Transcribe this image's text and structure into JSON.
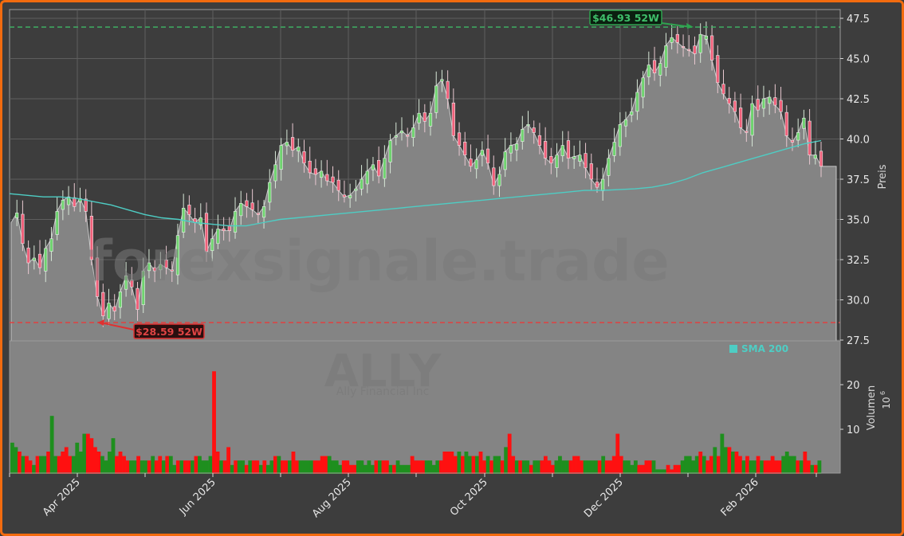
{
  "chart_data": {
    "type": "candlestick+area+bar",
    "ticker_watermark": "ALLY",
    "company_watermark": "Ally Financial Inc",
    "site_watermark": "forexsignale.trade",
    "price_axis": {
      "label": "Preis",
      "ticks": [
        27.5,
        30.0,
        32.5,
        35.0,
        37.5,
        40.0,
        42.5,
        45.0,
        47.5
      ],
      "ylim": [
        27.5,
        47.9
      ]
    },
    "volume_axis": {
      "label": "Volumen",
      "multiplier": "10^6",
      "ticks": [
        10,
        20
      ],
      "ylim": [
        0,
        30
      ]
    },
    "x_ticks": [
      "Apr 2025",
      "Jun 2025",
      "Aug 2025",
      "Oct 2025",
      "Dec 2025",
      "Feb 2026"
    ],
    "legend": [
      {
        "name": "SMA 200",
        "color": "#4ecdc4"
      }
    ],
    "annotations": [
      {
        "label": "$46.93 52W",
        "value": 46.93,
        "type": "52w_high",
        "color": "#2ea44f"
      },
      {
        "label": "$28.59 52W",
        "value": 28.59,
        "type": "52w_low",
        "color": "#e03131"
      }
    ],
    "last_close": 38.3,
    "close": [
      34.8,
      35.4,
      33.5,
      32.3,
      32.6,
      32.0,
      33.2,
      33.8,
      35.5,
      36.2,
      36.4,
      35.8,
      36.3,
      35.5,
      32.5,
      30.2,
      29.0,
      29.8,
      29.3,
      30.5,
      31.5,
      30.8,
      29.4,
      31.8,
      32.3,
      31.8,
      32.2,
      32.0,
      31.8,
      34.0,
      35.7,
      35.3,
      34.8,
      35.1,
      33.0,
      33.8,
      34.4,
      34.3,
      34.3,
      35.5,
      36.0,
      35.8,
      35.6,
      35.3,
      35.8,
      37.3,
      38.4,
      39.6,
      39.8,
      39.3,
      39.5,
      38.5,
      37.9,
      37.8,
      38.0,
      37.4,
      37.3,
      36.8,
      36.4,
      36.5,
      36.9,
      37.5,
      38.0,
      38.4,
      37.7,
      38.8,
      39.9,
      40.2,
      40.5,
      40.2,
      40.7,
      41.6,
      41.1,
      41.6,
      43.3,
      43.7,
      42.5,
      40.2,
      39.6,
      39.0,
      38.3,
      38.7,
      39.3,
      38.5,
      37.1,
      37.8,
      39.2,
      39.6,
      39.7,
      40.6,
      40.9,
      40.4,
      39.6,
      38.8,
      38.5,
      39.0,
      39.6,
      38.8,
      38.9,
      39.0,
      38.2,
      37.5,
      37.0,
      37.5,
      38.8,
      39.8,
      40.9,
      41.2,
      41.7,
      42.9,
      43.8,
      44.6,
      44.1,
      44.7,
      45.8,
      46.3,
      46.0,
      45.7,
      45.5,
      45.3,
      46.5,
      46.4,
      44.9,
      43.5,
      42.8,
      42.2,
      41.7,
      40.7,
      40.4,
      42.2,
      41.8,
      42.5,
      42.6,
      42.1,
      41.7,
      40.2,
      39.8,
      40.4,
      41.3,
      39.0,
      39.0,
      38.3
    ],
    "sma200": [
      36.6,
      36.5,
      36.4,
      36.4,
      36.3,
      36.1,
      35.9,
      35.6,
      35.3,
      35.1,
      35.0,
      34.8,
      34.7,
      34.6,
      34.6,
      34.8,
      35.0,
      35.1,
      35.2,
      35.3,
      35.4,
      35.5,
      35.6,
      35.7,
      35.8,
      35.9,
      36.0,
      36.1,
      36.2,
      36.3,
      36.4,
      36.5,
      36.6,
      36.7,
      36.8,
      36.8,
      36.85,
      36.9,
      37.0,
      37.2,
      37.5,
      37.9,
      38.2,
      38.5,
      38.8,
      39.1,
      39.4,
      39.7,
      39.9
    ],
    "volume": [
      7,
      6,
      5,
      4,
      4,
      3,
      2,
      4,
      4,
      4,
      5,
      13,
      4,
      4,
      5,
      6,
      4,
      4,
      7,
      5,
      9,
      9,
      8,
      6,
      5,
      4,
      3,
      5,
      8,
      4,
      5,
      4,
      3,
      3,
      3,
      4,
      3,
      3,
      3,
      4,
      3,
      4,
      3,
      4,
      4,
      2,
      3,
      3,
      3,
      3,
      3,
      4,
      4,
      3,
      3,
      4,
      23,
      5,
      3,
      3,
      6,
      2,
      3,
      3,
      3,
      2,
      3,
      3,
      3,
      2,
      3,
      2,
      3,
      4,
      4,
      3,
      3,
      3,
      5,
      3,
      3,
      3,
      3,
      3,
      3,
      3,
      4,
      4,
      4,
      3,
      3,
      2,
      3,
      3,
      2,
      2,
      3,
      3,
      2,
      3,
      2,
      3,
      3,
      3,
      3,
      2,
      2,
      3,
      2,
      2,
      2,
      4,
      3,
      3,
      3,
      3,
      3,
      2,
      3,
      3,
      5,
      5,
      5,
      4,
      5,
      4,
      5,
      4,
      4,
      4,
      5,
      3,
      4,
      3,
      4,
      4,
      3,
      6,
      9,
      4,
      3,
      3,
      3,
      3,
      2,
      3,
      3,
      3,
      4,
      3,
      2,
      3,
      4,
      3,
      3,
      3,
      4,
      4,
      3,
      3,
      3,
      3,
      3,
      3,
      4,
      3,
      3,
      4,
      9,
      4,
      3,
      3,
      2,
      3,
      2,
      2,
      3,
      3,
      3,
      1,
      1,
      1,
      2,
      1,
      2,
      2,
      3,
      4,
      4,
      3,
      4,
      5,
      4,
      3,
      4,
      6,
      4,
      9,
      6,
      6,
      5,
      5,
      4,
      3,
      4,
      3,
      3,
      4,
      3,
      3,
      3,
      4,
      3,
      3,
      4,
      5,
      4,
      4,
      3,
      3,
      5,
      3,
      2,
      2,
      3
    ]
  },
  "price_labels": [
    "27.5",
    "30.0",
    "32.5",
    "35.0",
    "37.5",
    "40.0",
    "42.5",
    "45.0",
    "47.5"
  ],
  "volume_labels": [
    "10",
    "20"
  ],
  "axis": {
    "price_title": "Preis",
    "volume_title": "Volumen",
    "volume_exp": "10",
    "volume_exp_sup": "6"
  },
  "x_labels": [
    "Apr 2025",
    "Jun 2025",
    "Aug 2025",
    "Oct 2025",
    "Dec 2025",
    "Feb 2026"
  ],
  "annotations": {
    "high": "$46.93 52W",
    "low": "$28.59 52W"
  },
  "legend": {
    "sma": "SMA 200"
  },
  "watermark": {
    "site": "forexsignale.trade",
    "ticker": "ALLY",
    "company": "Ally Financial Inc"
  }
}
